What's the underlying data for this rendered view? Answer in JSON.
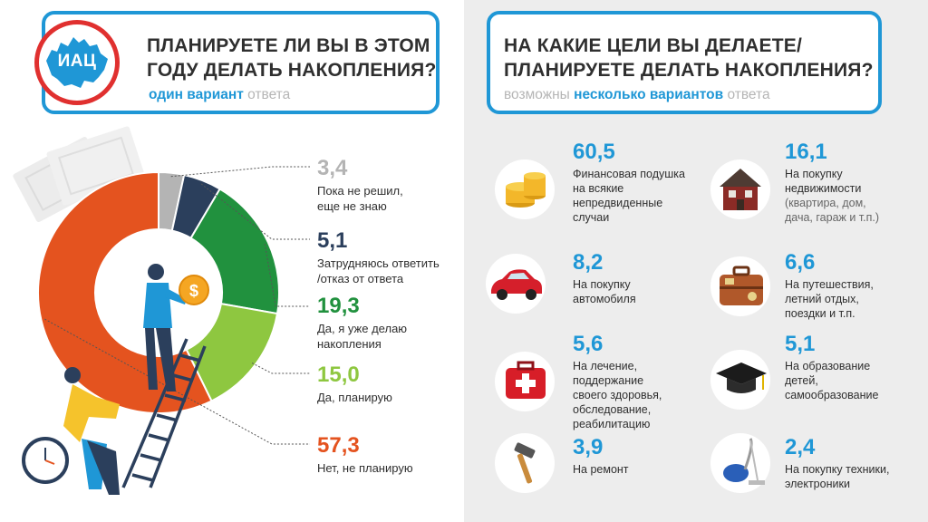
{
  "logo": {
    "text": "ИАЦ"
  },
  "left": {
    "title_line1": "ПЛАНИРУЕТЕ ЛИ ВЫ В ЭТОМ",
    "title_line2": "ГОДУ ДЕЛАТЬ НАКОПЛЕНИЯ?",
    "sub_emph": "один вариант",
    "sub_rest": "ответа"
  },
  "right": {
    "title_line1": "НА КАКИЕ ЦЕЛИ ВЫ ДЕЛАЕТЕ/",
    "title_line2": "ПЛАНИРУЕТЕ ДЕЛАТЬ НАКОПЛЕНИЯ?",
    "sub_pre": "возможны",
    "sub_emph": "несколько вариантов",
    "sub_rest": "ответа"
  },
  "chart_data": [
    {
      "type": "pie",
      "categories": [
        "Пока не решил, еще не знаю",
        "Затрудняюсь ответить /отказ от ответа",
        "Да, я уже делаю накопления",
        "Да, планирую",
        "Нет, не планирую"
      ],
      "values": [
        3.4,
        5.1,
        19.3,
        15.0,
        57.3
      ],
      "value_labels": [
        "3,4",
        "5,1",
        "19,3",
        "15,0",
        "57,3"
      ],
      "label_lines": [
        [
          "Пока не решил,",
          "еще не знаю"
        ],
        [
          "Затрудняюсь ответить",
          "/отказ от ответа"
        ],
        [
          "Да, я уже делаю",
          "накопления"
        ],
        [
          "Да, планирую"
        ],
        [
          "Нет, не планирую"
        ]
      ],
      "colors": [
        "#b4b4b4",
        "#2b3f5c",
        "#21913e",
        "#8ec740",
        "#e4531f"
      ]
    },
    {
      "type": "table",
      "categories": [
        "Финансовая подушка на всякие непредвиденные случаи",
        "На покупку недвижимости (квартира, дом, дача, гараж и т.п.)",
        "На покупку автомобиля",
        "На путешествия, летний отдых, поездки и т.п.",
        "На лечение, поддержание своего здоровья, обследование, реабилитацию",
        "На образование детей, самообразование",
        "На ремонт",
        "На покупку техники, электроники"
      ],
      "values": [
        60.5,
        16.1,
        8.2,
        6.6,
        5.6,
        5.1,
        3.9,
        2.4
      ],
      "value_labels": [
        "60,5",
        "16,1",
        "8,2",
        "6,6",
        "5,6",
        "5,1",
        "3,9",
        "2,4"
      ]
    }
  ],
  "goals": [
    {
      "value": "60,5",
      "icon": "coins-icon",
      "lines": [
        "Финансовая подушка",
        "на всякие",
        "непредвиденные",
        "случаи"
      ],
      "sub": []
    },
    {
      "value": "16,1",
      "icon": "house-icon",
      "lines": [
        "На покупку",
        "недвижимости"
      ],
      "sub": [
        "(квартира, дом,",
        "дача, гараж и т.п.)"
      ]
    },
    {
      "value": "8,2",
      "icon": "car-icon",
      "lines": [
        "На покупку",
        "автомобиля"
      ],
      "sub": []
    },
    {
      "value": "6,6",
      "icon": "suitcase-icon",
      "lines": [
        "На путешествия,",
        "летний отдых,",
        "поездки и т.п."
      ],
      "sub": []
    },
    {
      "value": "5,6",
      "icon": "first-aid-icon",
      "lines": [
        "На лечение,",
        "поддержание",
        "своего здоровья,",
        "обследование,",
        "реабилитацию"
      ],
      "sub": []
    },
    {
      "value": "5,1",
      "icon": "graduation-cap-icon",
      "lines": [
        "На образование",
        "детей,",
        "самообразование"
      ],
      "sub": []
    },
    {
      "value": "3,9",
      "icon": "hammer-icon",
      "lines": [
        "На ремонт"
      ],
      "sub": []
    },
    {
      "value": "2,4",
      "icon": "vacuum-cleaner-icon",
      "lines": [
        "На покупку техники,",
        "электроники"
      ],
      "sub": []
    }
  ]
}
